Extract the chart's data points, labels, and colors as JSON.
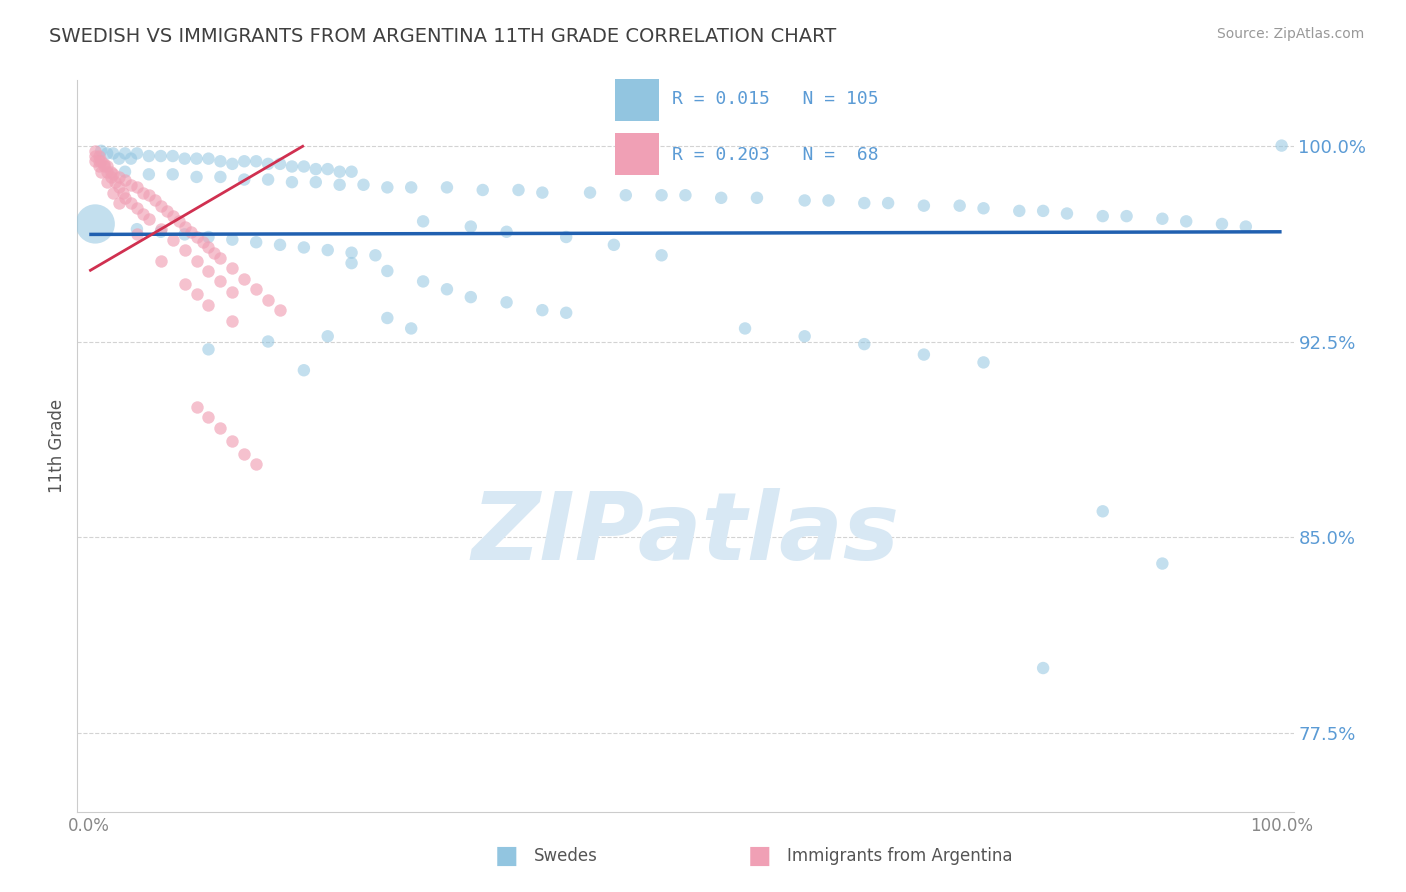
{
  "title": "SWEDISH VS IMMIGRANTS FROM ARGENTINA 11TH GRADE CORRELATION CHART",
  "source_text": "Source: ZipAtlas.com",
  "ylabel": "11th Grade",
  "ymin": 0.745,
  "ymax": 1.025,
  "xmin": -0.01,
  "xmax": 1.01,
  "yticks": [
    0.775,
    0.85,
    0.925,
    1.0
  ],
  "ytick_labels": [
    "77.5%",
    "85.0%",
    "92.5%",
    "100.0%"
  ],
  "xtick_labels": [
    "0.0%",
    "100.0%"
  ],
  "legend_blue_r": "R = 0.015",
  "legend_blue_n": "N = 105",
  "legend_pink_r": "R = 0.203",
  "legend_pink_n": "N =  68",
  "blue_color": "#92C5E0",
  "pink_color": "#F0A0B5",
  "blue_line_color": "#2060B0",
  "pink_line_color": "#D03050",
  "title_color": "#404040",
  "axis_tick_color": "#5B9BD5",
  "grid_color": "#C8C8C8",
  "watermark_color": "#D8E8F4",
  "watermark": "ZIPatlas",
  "blue_x": [
    0.005,
    0.01,
    0.015,
    0.02,
    0.025,
    0.03,
    0.035,
    0.04,
    0.05,
    0.06,
    0.07,
    0.08,
    0.09,
    0.1,
    0.11,
    0.12,
    0.13,
    0.14,
    0.15,
    0.16,
    0.17,
    0.18,
    0.19,
    0.2,
    0.21,
    0.22,
    0.03,
    0.05,
    0.07,
    0.09,
    0.11,
    0.13,
    0.15,
    0.17,
    0.19,
    0.21,
    0.23,
    0.25,
    0.27,
    0.3,
    0.33,
    0.36,
    0.38,
    0.42,
    0.45,
    0.48,
    0.5,
    0.53,
    0.56,
    0.6,
    0.62,
    0.65,
    0.67,
    0.7,
    0.73,
    0.75,
    0.78,
    0.8,
    0.82,
    0.85,
    0.87,
    0.9,
    0.92,
    0.95,
    0.97,
    1.0,
    0.04,
    0.06,
    0.08,
    0.1,
    0.12,
    0.14,
    0.16,
    0.18,
    0.2,
    0.22,
    0.24,
    0.28,
    0.32,
    0.35,
    0.4,
    0.44,
    0.48,
    0.22,
    0.25,
    0.28,
    0.3,
    0.32,
    0.35,
    0.38,
    0.25,
    0.27,
    0.2,
    0.15,
    0.4,
    0.1,
    0.55,
    0.6,
    0.65,
    0.7,
    0.75,
    0.18,
    0.85,
    0.9,
    0.8
  ],
  "blue_y": [
    0.97,
    0.998,
    0.997,
    0.997,
    0.995,
    0.997,
    0.995,
    0.997,
    0.996,
    0.996,
    0.996,
    0.995,
    0.995,
    0.995,
    0.994,
    0.993,
    0.994,
    0.994,
    0.993,
    0.993,
    0.992,
    0.992,
    0.991,
    0.991,
    0.99,
    0.99,
    0.99,
    0.989,
    0.989,
    0.988,
    0.988,
    0.987,
    0.987,
    0.986,
    0.986,
    0.985,
    0.985,
    0.984,
    0.984,
    0.984,
    0.983,
    0.983,
    0.982,
    0.982,
    0.981,
    0.981,
    0.981,
    0.98,
    0.98,
    0.979,
    0.979,
    0.978,
    0.978,
    0.977,
    0.977,
    0.976,
    0.975,
    0.975,
    0.974,
    0.973,
    0.973,
    0.972,
    0.971,
    0.97,
    0.969,
    1.0,
    0.968,
    0.967,
    0.966,
    0.965,
    0.964,
    0.963,
    0.962,
    0.961,
    0.96,
    0.959,
    0.958,
    0.971,
    0.969,
    0.967,
    0.965,
    0.962,
    0.958,
    0.955,
    0.952,
    0.948,
    0.945,
    0.942,
    0.94,
    0.937,
    0.934,
    0.93,
    0.927,
    0.925,
    0.936,
    0.922,
    0.93,
    0.927,
    0.924,
    0.92,
    0.917,
    0.914,
    0.86,
    0.84,
    0.8
  ],
  "blue_size": [
    800,
    80,
    80,
    80,
    80,
    80,
    80,
    80,
    80,
    80,
    80,
    80,
    80,
    80,
    80,
    80,
    80,
    80,
    80,
    80,
    80,
    80,
    80,
    80,
    80,
    80,
    80,
    80,
    80,
    80,
    80,
    80,
    80,
    80,
    80,
    80,
    80,
    80,
    80,
    80,
    80,
    80,
    80,
    80,
    80,
    80,
    80,
    80,
    80,
    80,
    80,
    80,
    80,
    80,
    80,
    80,
    80,
    80,
    80,
    80,
    80,
    80,
    80,
    80,
    80,
    80,
    80,
    80,
    80,
    80,
    80,
    80,
    80,
    80,
    80,
    80,
    80,
    80,
    80,
    80,
    80,
    80,
    80,
    80,
    80,
    80,
    80,
    80,
    80,
    80,
    80,
    80,
    80,
    80,
    80,
    80,
    80,
    80,
    80,
    80,
    80,
    80,
    80,
    80,
    80
  ],
  "pink_x": [
    0.005,
    0.008,
    0.01,
    0.012,
    0.015,
    0.018,
    0.02,
    0.025,
    0.03,
    0.035,
    0.04,
    0.045,
    0.05,
    0.055,
    0.06,
    0.065,
    0.07,
    0.075,
    0.08,
    0.085,
    0.09,
    0.095,
    0.1,
    0.105,
    0.11,
    0.12,
    0.13,
    0.14,
    0.15,
    0.16,
    0.005,
    0.008,
    0.012,
    0.015,
    0.018,
    0.022,
    0.025,
    0.028,
    0.03,
    0.035,
    0.04,
    0.045,
    0.05,
    0.06,
    0.07,
    0.08,
    0.09,
    0.1,
    0.11,
    0.12,
    0.005,
    0.008,
    0.01,
    0.015,
    0.02,
    0.025,
    0.04,
    0.06,
    0.08,
    0.09,
    0.1,
    0.12,
    0.09,
    0.1,
    0.11,
    0.12,
    0.13,
    0.14
  ],
  "pink_y": [
    0.998,
    0.996,
    0.994,
    0.993,
    0.992,
    0.99,
    0.989,
    0.988,
    0.987,
    0.985,
    0.984,
    0.982,
    0.981,
    0.979,
    0.977,
    0.975,
    0.973,
    0.971,
    0.969,
    0.967,
    0.965,
    0.963,
    0.961,
    0.959,
    0.957,
    0.953,
    0.949,
    0.945,
    0.941,
    0.937,
    0.996,
    0.994,
    0.992,
    0.99,
    0.988,
    0.986,
    0.984,
    0.982,
    0.98,
    0.978,
    0.976,
    0.974,
    0.972,
    0.968,
    0.964,
    0.96,
    0.956,
    0.952,
    0.948,
    0.944,
    0.994,
    0.992,
    0.99,
    0.986,
    0.982,
    0.978,
    0.966,
    0.956,
    0.947,
    0.943,
    0.939,
    0.933,
    0.9,
    0.896,
    0.892,
    0.887,
    0.882,
    0.878
  ],
  "blue_line_x": [
    0.0,
    1.0
  ],
  "blue_line_y": [
    0.966,
    0.967
  ],
  "pink_line_x": [
    0.0,
    0.18
  ],
  "pink_line_y": [
    0.952,
    1.0
  ]
}
